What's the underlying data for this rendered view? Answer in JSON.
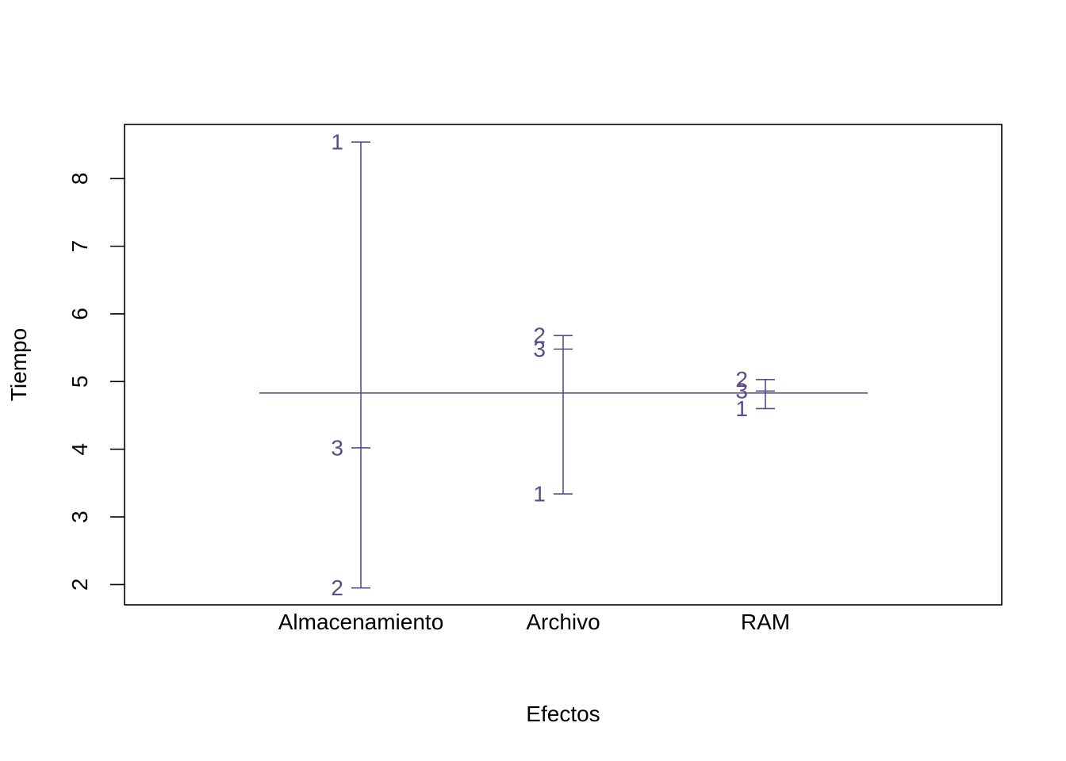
{
  "chart_data": {
    "type": "line",
    "title": "",
    "xlabel": "Efectos",
    "ylabel": "Tiempo",
    "categories": [
      "Almacenamiento",
      "Archivo",
      "RAM"
    ],
    "ylim": [
      1.7,
      8.8
    ],
    "yticks": [
      2,
      3,
      4,
      5,
      6,
      7,
      8
    ],
    "grand_mean": 4.83,
    "line_color": "#5B4B8A",
    "effects": [
      {
        "category": "Almacenamiento",
        "levels": [
          {
            "label": "1",
            "value": 8.54
          },
          {
            "label": "3",
            "value": 4.02
          },
          {
            "label": "2",
            "value": 1.95
          }
        ]
      },
      {
        "category": "Archivo",
        "levels": [
          {
            "label": "2",
            "value": 5.68
          },
          {
            "label": "3",
            "value": 5.48
          },
          {
            "label": "1",
            "value": 3.34
          }
        ]
      },
      {
        "category": "RAM",
        "levels": [
          {
            "label": "2",
            "value": 5.03
          },
          {
            "label": "3",
            "value": 4.86
          },
          {
            "label": "1",
            "value": 4.6
          }
        ]
      }
    ]
  }
}
